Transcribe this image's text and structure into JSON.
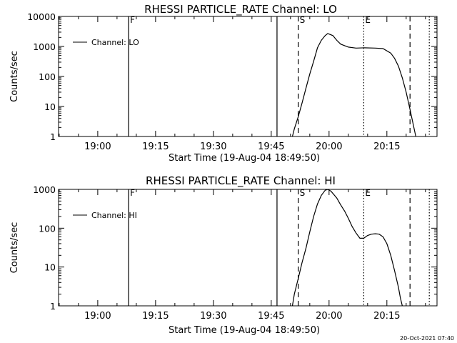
{
  "footer_timestamp": "20-Oct-2021 07:40",
  "colors": {
    "background": "#ffffff",
    "foreground": "#000000"
  },
  "chart_data": [
    {
      "type": "line",
      "title": "RHESSI PARTICLE_RATE Channel: LO",
      "xlabel": "Start Time (19-Aug-04 18:49:50)",
      "ylabel": "Counts/sec",
      "y_scale": "log",
      "ylim": [
        1,
        10000
      ],
      "y_ticks": [
        1,
        10,
        100,
        1000,
        10000
      ],
      "y_tick_labels": [
        "1",
        "10",
        "100",
        "1000",
        "10000"
      ],
      "xlim": [
        "18:49:50",
        "20:28:00"
      ],
      "x_ticks": [
        "19:00",
        "19:15",
        "19:30",
        "19:45",
        "20:00",
        "20:15"
      ],
      "x_tick_labels": [
        "19:00",
        "19:15",
        "19:30",
        "19:45",
        "20:00",
        "20:15"
      ],
      "legend": {
        "entries": [
          "Channel: LO"
        ],
        "position": "top-left"
      },
      "series": [
        {
          "name": "Channel: LO",
          "x": [
            "19:50:30",
            "19:51:00",
            "19:52:00",
            "19:53:00",
            "19:54:00",
            "19:55:00",
            "19:56:00",
            "19:57:00",
            "19:58:00",
            "19:59:00",
            "19:59:40",
            "20:01:00",
            "20:02:00",
            "20:03:00",
            "20:05:00",
            "20:07:00",
            "20:09:00",
            "20:12:00",
            "20:14:00",
            "20:16:00",
            "20:17:00",
            "20:18:00",
            "20:19:00",
            "20:20:00",
            "20:21:00",
            "20:21:30",
            "20:22:00",
            "20:22:30"
          ],
          "values": [
            1.0,
            1.8,
            4.5,
            13,
            40,
            120,
            320,
            900,
            1600,
            2300,
            2700,
            2300,
            1600,
            1200,
            950,
            880,
            900,
            880,
            850,
            600,
            400,
            220,
            90,
            30,
            8,
            4,
            2,
            1.0
          ]
        }
      ],
      "vertical_lines": [
        {
          "time": "19:08:00",
          "style": "solid",
          "label": "F"
        },
        {
          "time": "19:46:30",
          "style": "solid",
          "label": ""
        },
        {
          "time": "19:52:00",
          "style": "dashed",
          "label": "S"
        },
        {
          "time": "20:09:00",
          "style": "dotted",
          "label": "E"
        },
        {
          "time": "20:21:00",
          "style": "dashed",
          "label": ""
        },
        {
          "time": "20:26:00",
          "style": "dotted",
          "label": ""
        }
      ],
      "grid": false
    },
    {
      "type": "line",
      "title": "RHESSI PARTICLE_RATE Channel: HI",
      "xlabel": "Start Time (19-Aug-04 18:49:50)",
      "ylabel": "Counts/sec",
      "y_scale": "log",
      "ylim": [
        1,
        1000
      ],
      "y_ticks": [
        1,
        10,
        100,
        1000
      ],
      "y_tick_labels": [
        "1",
        "10",
        "100",
        "1000"
      ],
      "xlim": [
        "18:49:50",
        "20:28:00"
      ],
      "x_ticks": [
        "19:00",
        "19:15",
        "19:30",
        "19:45",
        "20:00",
        "20:15"
      ],
      "x_tick_labels": [
        "19:00",
        "19:15",
        "19:30",
        "19:45",
        "20:00",
        "20:15"
      ],
      "legend": {
        "entries": [
          "Channel: HI"
        ],
        "position": "top-left"
      },
      "series": [
        {
          "name": "Channel: HI",
          "x": [
            "19:50:30",
            "19:51:00",
            "19:52:00",
            "19:53:00",
            "19:54:00",
            "19:55:00",
            "19:56:00",
            "19:57:00",
            "19:58:00",
            "19:59:00",
            "19:59:40",
            "20:00:30",
            "20:02:00",
            "20:03:00",
            "20:04:00",
            "20:05:00",
            "20:06:00",
            "20:07:00",
            "20:08:00",
            "20:09:00",
            "20:10:00",
            "20:11:00",
            "20:12:00",
            "20:13:00",
            "20:14:00",
            "20:15:00",
            "20:16:00",
            "20:17:00",
            "20:18:00",
            "20:18:30",
            "20:19:00"
          ],
          "values": [
            1.0,
            2.0,
            5.0,
            13,
            30,
            80,
            200,
            420,
            700,
            950,
            1000,
            900,
            600,
            400,
            280,
            180,
            110,
            75,
            55,
            55,
            65,
            70,
            72,
            70,
            60,
            40,
            20,
            8,
            3,
            1.6,
            1.0
          ]
        }
      ],
      "vertical_lines": [
        {
          "time": "19:08:00",
          "style": "solid",
          "label": "F"
        },
        {
          "time": "19:46:30",
          "style": "solid",
          "label": ""
        },
        {
          "time": "19:52:00",
          "style": "dashed",
          "label": "S"
        },
        {
          "time": "20:09:00",
          "style": "dotted",
          "label": "E"
        },
        {
          "time": "20:21:00",
          "style": "dashed",
          "label": ""
        },
        {
          "time": "20:26:00",
          "style": "dotted",
          "label": ""
        }
      ],
      "grid": false
    }
  ]
}
